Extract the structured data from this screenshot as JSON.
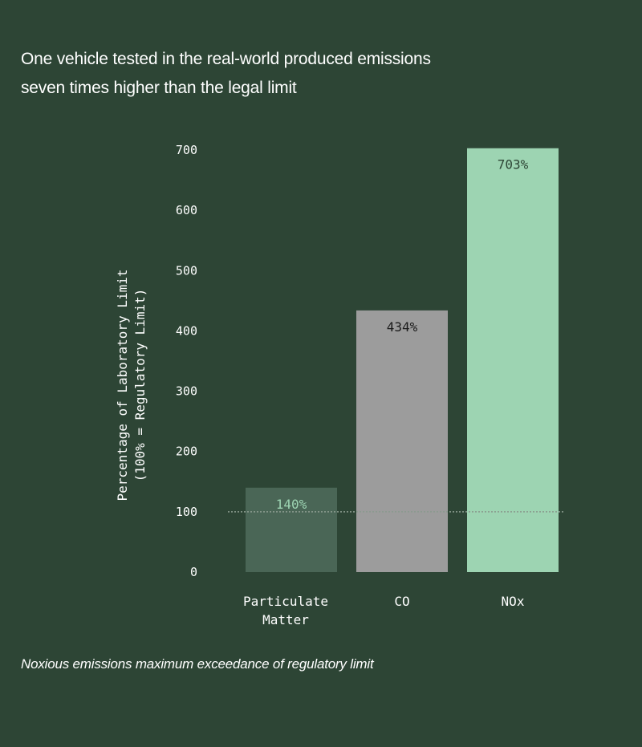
{
  "title": {
    "line1": "One vehicle tested in the real-world produced emissions",
    "line2": "seven times higher than the legal limit"
  },
  "caption": "Noxious emissions maximum exceedance of regulatory limit",
  "chart_data": {
    "type": "bar",
    "categories": [
      [
        "Particulate",
        "Matter"
      ],
      [
        "CO"
      ],
      [
        "NOx"
      ]
    ],
    "values": [
      140,
      434,
      703
    ],
    "data_labels": [
      "140%",
      "434%",
      "703%"
    ],
    "bar_colors": [
      "#4a6656",
      "#9c9c9c",
      "#9dd4b2"
    ],
    "label_colors": [
      "#9dd4b2",
      "#1a1a1a",
      "#2d4535"
    ],
    "ylabel": [
      "Percentage of Laboratory Limit",
      "(100% = Regulatory Limit)"
    ],
    "yticks": [
      0,
      100,
      200,
      300,
      400,
      500,
      600,
      700
    ],
    "ylim": [
      0,
      700
    ],
    "reference_line": 100,
    "grid": false,
    "legend": "none",
    "axis_color": "#ffffff",
    "reference_line_color": "#8a9a8e"
  }
}
